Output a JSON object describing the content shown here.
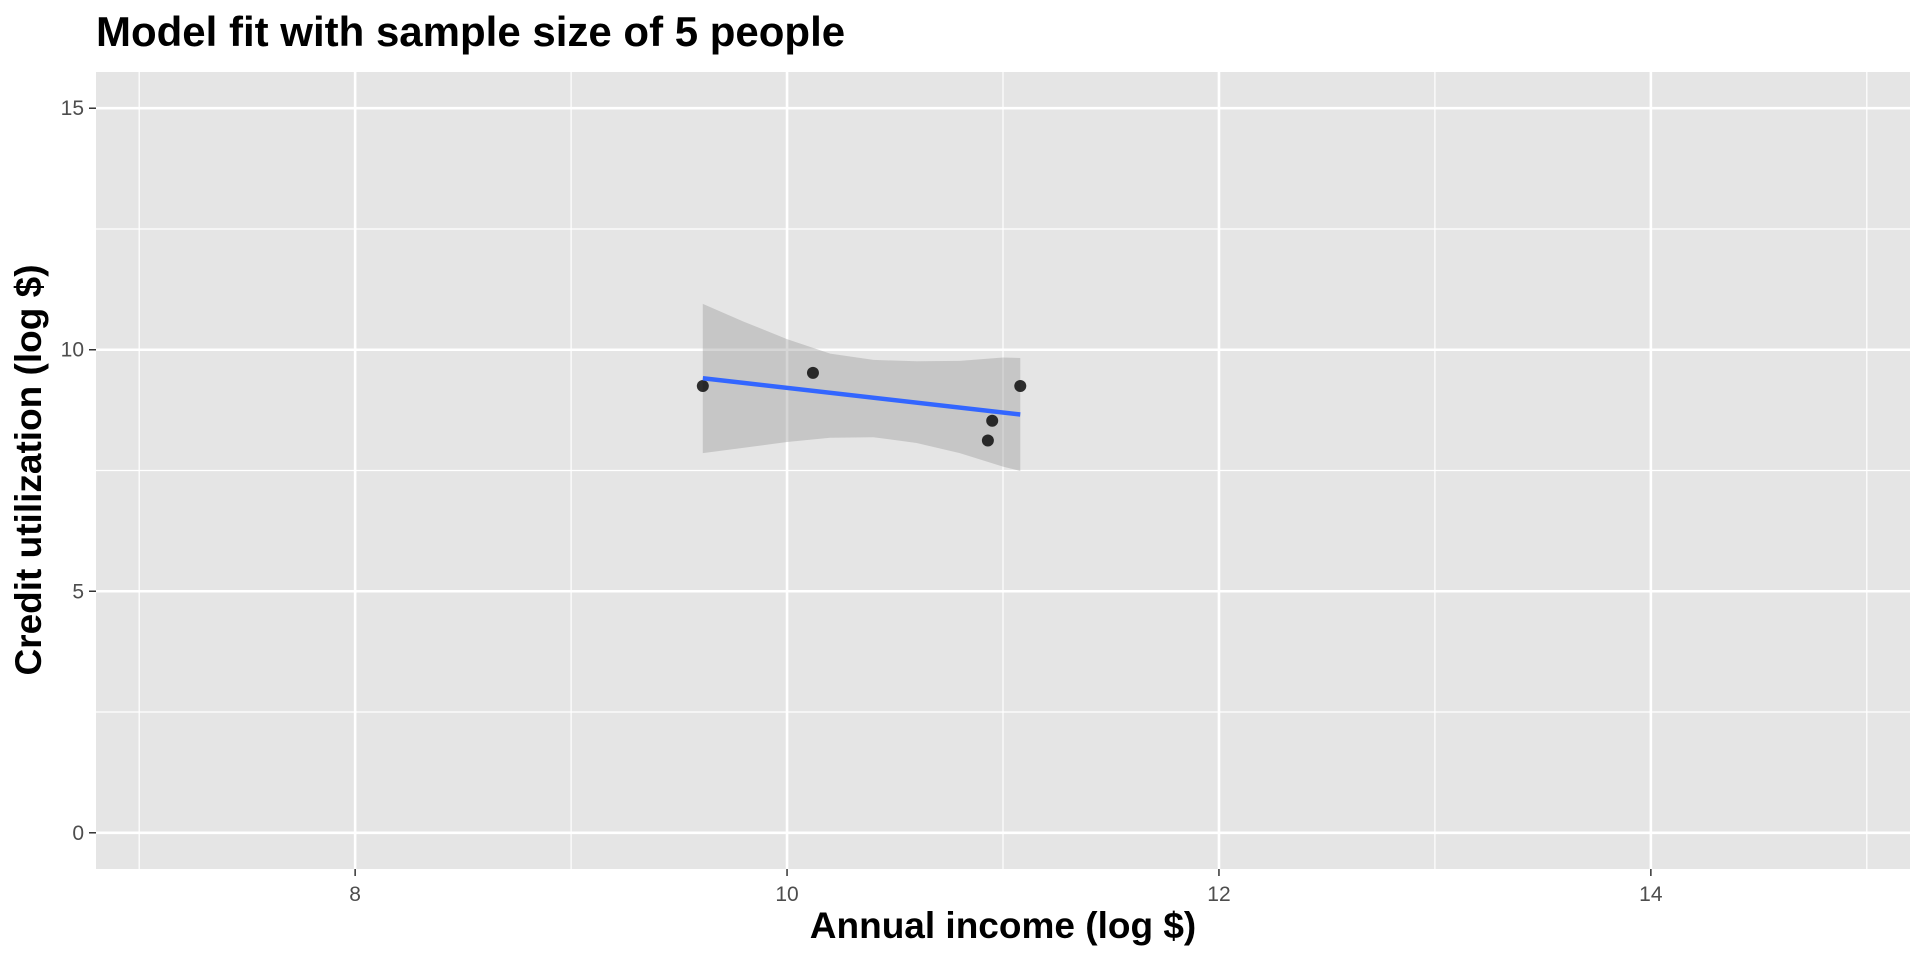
{
  "chart_data": {
    "type": "scatter",
    "title": "Model fit with sample size of 5 people",
    "xlabel": "Annual income (log $)",
    "ylabel": "Credit utilization (log $)",
    "xlim": [
      6.8,
      15.2
    ],
    "ylim": [
      -0.75,
      15.75
    ],
    "x_ticks": [
      8,
      10,
      12,
      14
    ],
    "x_minor_ticks": [
      7,
      9,
      11,
      13,
      15
    ],
    "y_ticks": [
      0,
      5,
      10,
      15
    ],
    "y_minor_ticks": [
      2.5,
      7.5,
      12.5
    ],
    "x_tick_labels": [
      "8",
      "10",
      "12",
      "14"
    ],
    "y_tick_labels": [
      "0",
      "5",
      "10",
      "15"
    ],
    "grid": true,
    "legend": "none",
    "points": [
      {
        "x": 9.61,
        "y": 9.25
      },
      {
        "x": 10.12,
        "y": 9.52
      },
      {
        "x": 10.93,
        "y": 8.12
      },
      {
        "x": 10.95,
        "y": 8.53
      },
      {
        "x": 11.08,
        "y": 9.25
      }
    ],
    "fit_line": {
      "x": [
        9.61,
        11.08
      ],
      "y": [
        9.41,
        8.66
      ]
    },
    "confidence_band": {
      "x": [
        9.61,
        9.8,
        10.0,
        10.2,
        10.4,
        10.6,
        10.8,
        11.0,
        11.08
      ],
      "upper": [
        10.95,
        10.58,
        10.22,
        9.92,
        9.79,
        9.76,
        9.77,
        9.84,
        9.83
      ],
      "lower": [
        7.86,
        7.97,
        8.09,
        8.18,
        8.19,
        8.07,
        7.86,
        7.58,
        7.49
      ]
    },
    "colors": {
      "panel": "#e5e5e5",
      "grid": "#ffffff",
      "point": "#000000",
      "fit_line": "#3366ff",
      "band": "#999999"
    }
  }
}
